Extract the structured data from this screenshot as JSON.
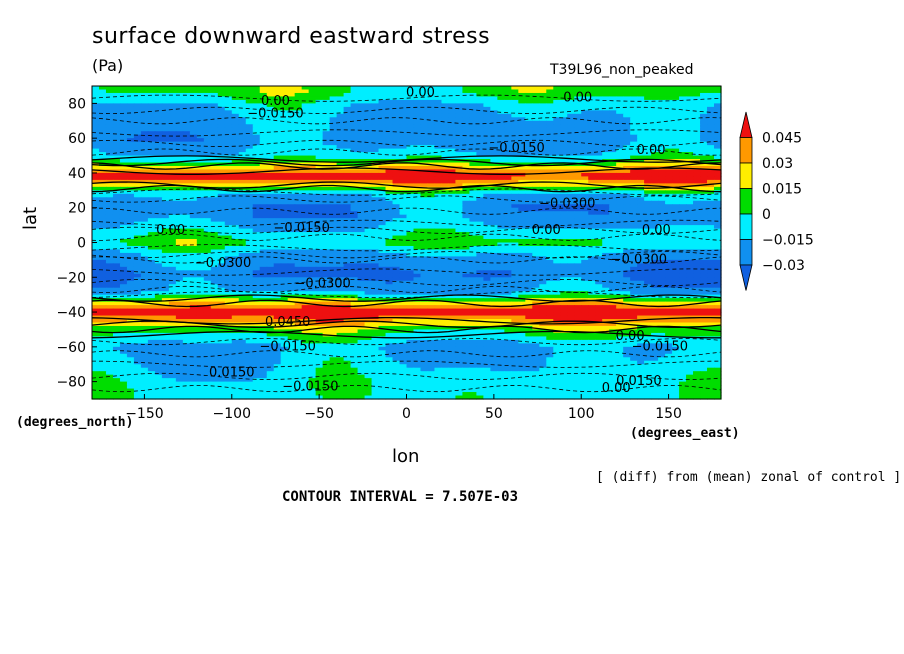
{
  "title": "surface downward eastward stress",
  "units": "(Pa)",
  "experiment": "T39L96_non_peaked",
  "note": "[ (diff) from (mean) zonal of control ]",
  "contour_interval": "CONTOUR INTERVAL = 7.507E-03",
  "chart_data": {
    "type": "heatmap",
    "xlabel": "lon",
    "ylabel": "lat",
    "x_units": "(degrees_east)",
    "y_units": "(degrees_north)",
    "xlim": [
      -180,
      180
    ],
    "ylim": [
      -90,
      90
    ],
    "x_ticks": [
      -150,
      -100,
      -50,
      0,
      50,
      100,
      150
    ],
    "y_ticks": [
      80,
      60,
      40,
      20,
      0,
      -20,
      -40,
      -60,
      -80
    ],
    "colorbar": {
      "levels": [
        0.045,
        0.03,
        0.015,
        0,
        -0.015,
        -0.03
      ],
      "labels": [
        "0.045",
        "0.03",
        "0.015",
        "0",
        "−0.015",
        "−0.03"
      ],
      "colors": [
        "#ee1010",
        "#ff9900",
        "#ffee00",
        "#00dd00",
        "#00eeff",
        "#1090f0",
        "#1060e0"
      ]
    },
    "lat_profile": [
      {
        "lat": 86,
        "value": 0.005
      },
      {
        "lat": 79,
        "value": -0.012
      },
      {
        "lat": 69,
        "value": -0.02
      },
      {
        "lat": 58,
        "value": -0.022
      },
      {
        "lat": 50,
        "value": -0.01
      },
      {
        "lat": 45,
        "value": 0.015
      },
      {
        "lat": 38,
        "value": 0.06
      },
      {
        "lat": 28,
        "value": -0.012
      },
      {
        "lat": 22,
        "value": -0.024
      },
      {
        "lat": 15,
        "value": -0.024
      },
      {
        "lat": 8,
        "value": -0.012
      },
      {
        "lat": 0,
        "value": 0.004
      },
      {
        "lat": -8,
        "value": -0.02
      },
      {
        "lat": -18,
        "value": -0.03
      },
      {
        "lat": -28,
        "value": -0.02
      },
      {
        "lat": -40,
        "value": 0.06
      },
      {
        "lat": -50,
        "value": 0.01
      },
      {
        "lat": -60,
        "value": -0.018
      },
      {
        "lat": -72,
        "value": -0.012
      },
      {
        "lat": -82,
        "value": -0.005
      }
    ],
    "contour_labels": [
      {
        "text": "0.00",
        "lon": -75,
        "lat": 79
      },
      {
        "text": "0.00",
        "lon": 8,
        "lat": 84
      },
      {
        "text": "0.00",
        "lon": 98,
        "lat": 81
      },
      {
        "text": "−0.0150",
        "lon": -75,
        "lat": 72
      },
      {
        "text": "−0.0150",
        "lon": 63,
        "lat": 52
      },
      {
        "text": "0.00",
        "lon": 140,
        "lat": 51
      },
      {
        "text": "−0.0300",
        "lon": 92,
        "lat": 20
      },
      {
        "text": "0.00",
        "lon": -135,
        "lat": 5
      },
      {
        "text": "−0.0150",
        "lon": -60,
        "lat": 6
      },
      {
        "text": "0.00",
        "lon": 80,
        "lat": 5
      },
      {
        "text": "0.00",
        "lon": 143,
        "lat": 5
      },
      {
        "text": "−0.0300",
        "lon": -105,
        "lat": -14
      },
      {
        "text": "−0.0300",
        "lon": 133,
        "lat": -12
      },
      {
        "text": "−0.0300",
        "lon": -48,
        "lat": -26
      },
      {
        "text": "0.0450",
        "lon": -68,
        "lat": -48
      },
      {
        "text": "−0.0150",
        "lon": -68,
        "lat": -62
      },
      {
        "text": "0.00",
        "lon": 128,
        "lat": -56
      },
      {
        "text": "−0.0150",
        "lon": 145,
        "lat": -62
      },
      {
        "text": "0.0150",
        "lon": -100,
        "lat": -77
      },
      {
        "text": "−0.0150",
        "lon": -55,
        "lat": -85
      },
      {
        "text": "0.0150",
        "lon": 133,
        "lat": -82
      },
      {
        "text": "0.00",
        "lon": 120,
        "lat": -86
      }
    ]
  }
}
